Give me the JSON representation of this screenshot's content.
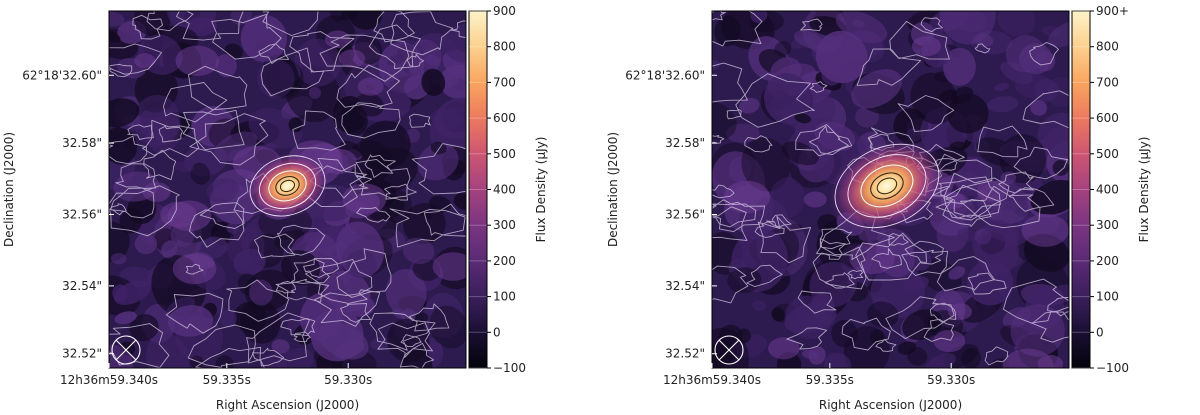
{
  "panels": [
    {
      "id": "left",
      "xlabel": "Right Ascension (J2000)",
      "ylabel": "Declination (J2000)",
      "xticks": [
        "12h36m59.340s",
        "59.335s",
        "59.330s"
      ],
      "yticks": [
        "62°18'32.60\"",
        "32.58\"",
        "32.56\"",
        "32.54\"",
        "32.52\""
      ],
      "colorbar": {
        "label": "Flux Density (μJy)",
        "ticks": [
          "900",
          "800",
          "700",
          "600",
          "500",
          "400",
          "300",
          "200",
          "100",
          "0",
          "−100"
        ],
        "range": [
          -100,
          900
        ]
      }
    },
    {
      "id": "right",
      "xlabel": "Right Ascension (J2000)",
      "ylabel": "Declination (J2000)",
      "xticks": [
        "12h36m59.340s",
        "59.335s",
        "59.330s"
      ],
      "yticks": [
        "62°18'32.60\"",
        "32.58\"",
        "32.56\"",
        "32.54\"",
        "32.52\""
      ],
      "colorbar": {
        "label": "Flux Density (μJy)",
        "ticks": [
          "900+",
          "800",
          "700",
          "600",
          "500",
          "400",
          "300",
          "200",
          "100",
          "0",
          "−100"
        ],
        "range": [
          -100,
          900
        ]
      }
    }
  ]
}
